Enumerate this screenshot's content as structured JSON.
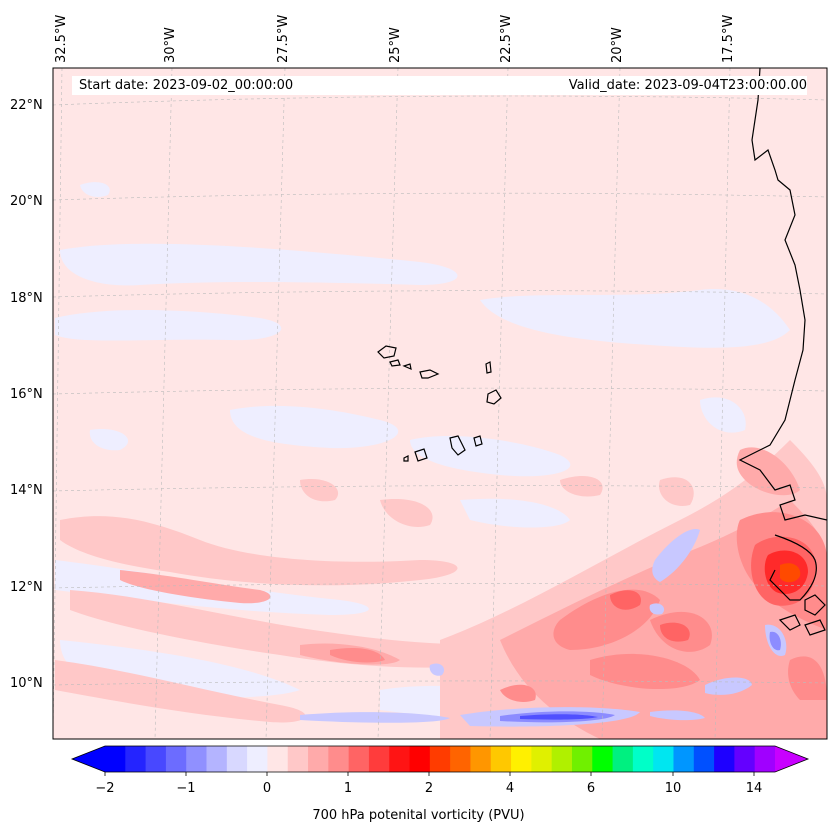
{
  "map": {
    "start_date": "Start date: 2023-09-02_00:00:00",
    "valid_date": "Valid_date: 2023-09-04T23:00:00.00",
    "lon_labels": [
      "32.5°W",
      "30°W",
      "27.5°W",
      "25°W",
      "22.5°W",
      "20°W",
      "17.5°W"
    ],
    "lat_labels": [
      "22°N",
      "20°N",
      "18°N",
      "16°N",
      "14°N",
      "12°N",
      "10°N"
    ],
    "field_colors": {
      "background": "#ffe6e6",
      "faint_blue": "#eeeeff",
      "light_pink": "#ffc8c8",
      "pink": "#ffaaaa",
      "salmon": "#ff8c8c",
      "red_light": "#ff6464",
      "red": "#ff2a2a",
      "orange_red": "#ff4a00",
      "blue_light": "#c8c8ff",
      "blue": "#8c8cff",
      "blue_dark": "#5050ff",
      "coast": "#000000",
      "grid": "#bbbbbb"
    }
  },
  "colorbar": {
    "title": "700 hPa potenital vorticity (PVU)",
    "tick_labels": [
      "−2",
      "−1",
      "0",
      "1",
      "2",
      "4",
      "6",
      "10",
      "14"
    ],
    "colors": [
      "#0000ff",
      "#2424ff",
      "#4848ff",
      "#6c6cff",
      "#9090ff",
      "#b4b4ff",
      "#d8d8ff",
      "#eeeeff",
      "#ffe6e6",
      "#ffc8c8",
      "#ffaaaa",
      "#ff8c8c",
      "#ff6464",
      "#ff3c3c",
      "#ff1414",
      "#ff0000",
      "#ff3c00",
      "#ff6400",
      "#ff9600",
      "#ffc800",
      "#fff000",
      "#e0f000",
      "#b0f000",
      "#70f000",
      "#00ff00",
      "#00f080",
      "#00ffc8",
      "#00e6f0",
      "#0096ff",
      "#0050ff",
      "#1e00ff",
      "#6400ff",
      "#a000ff"
    ],
    "under_color": "#0000ff",
    "over_color": "#c800ff"
  }
}
